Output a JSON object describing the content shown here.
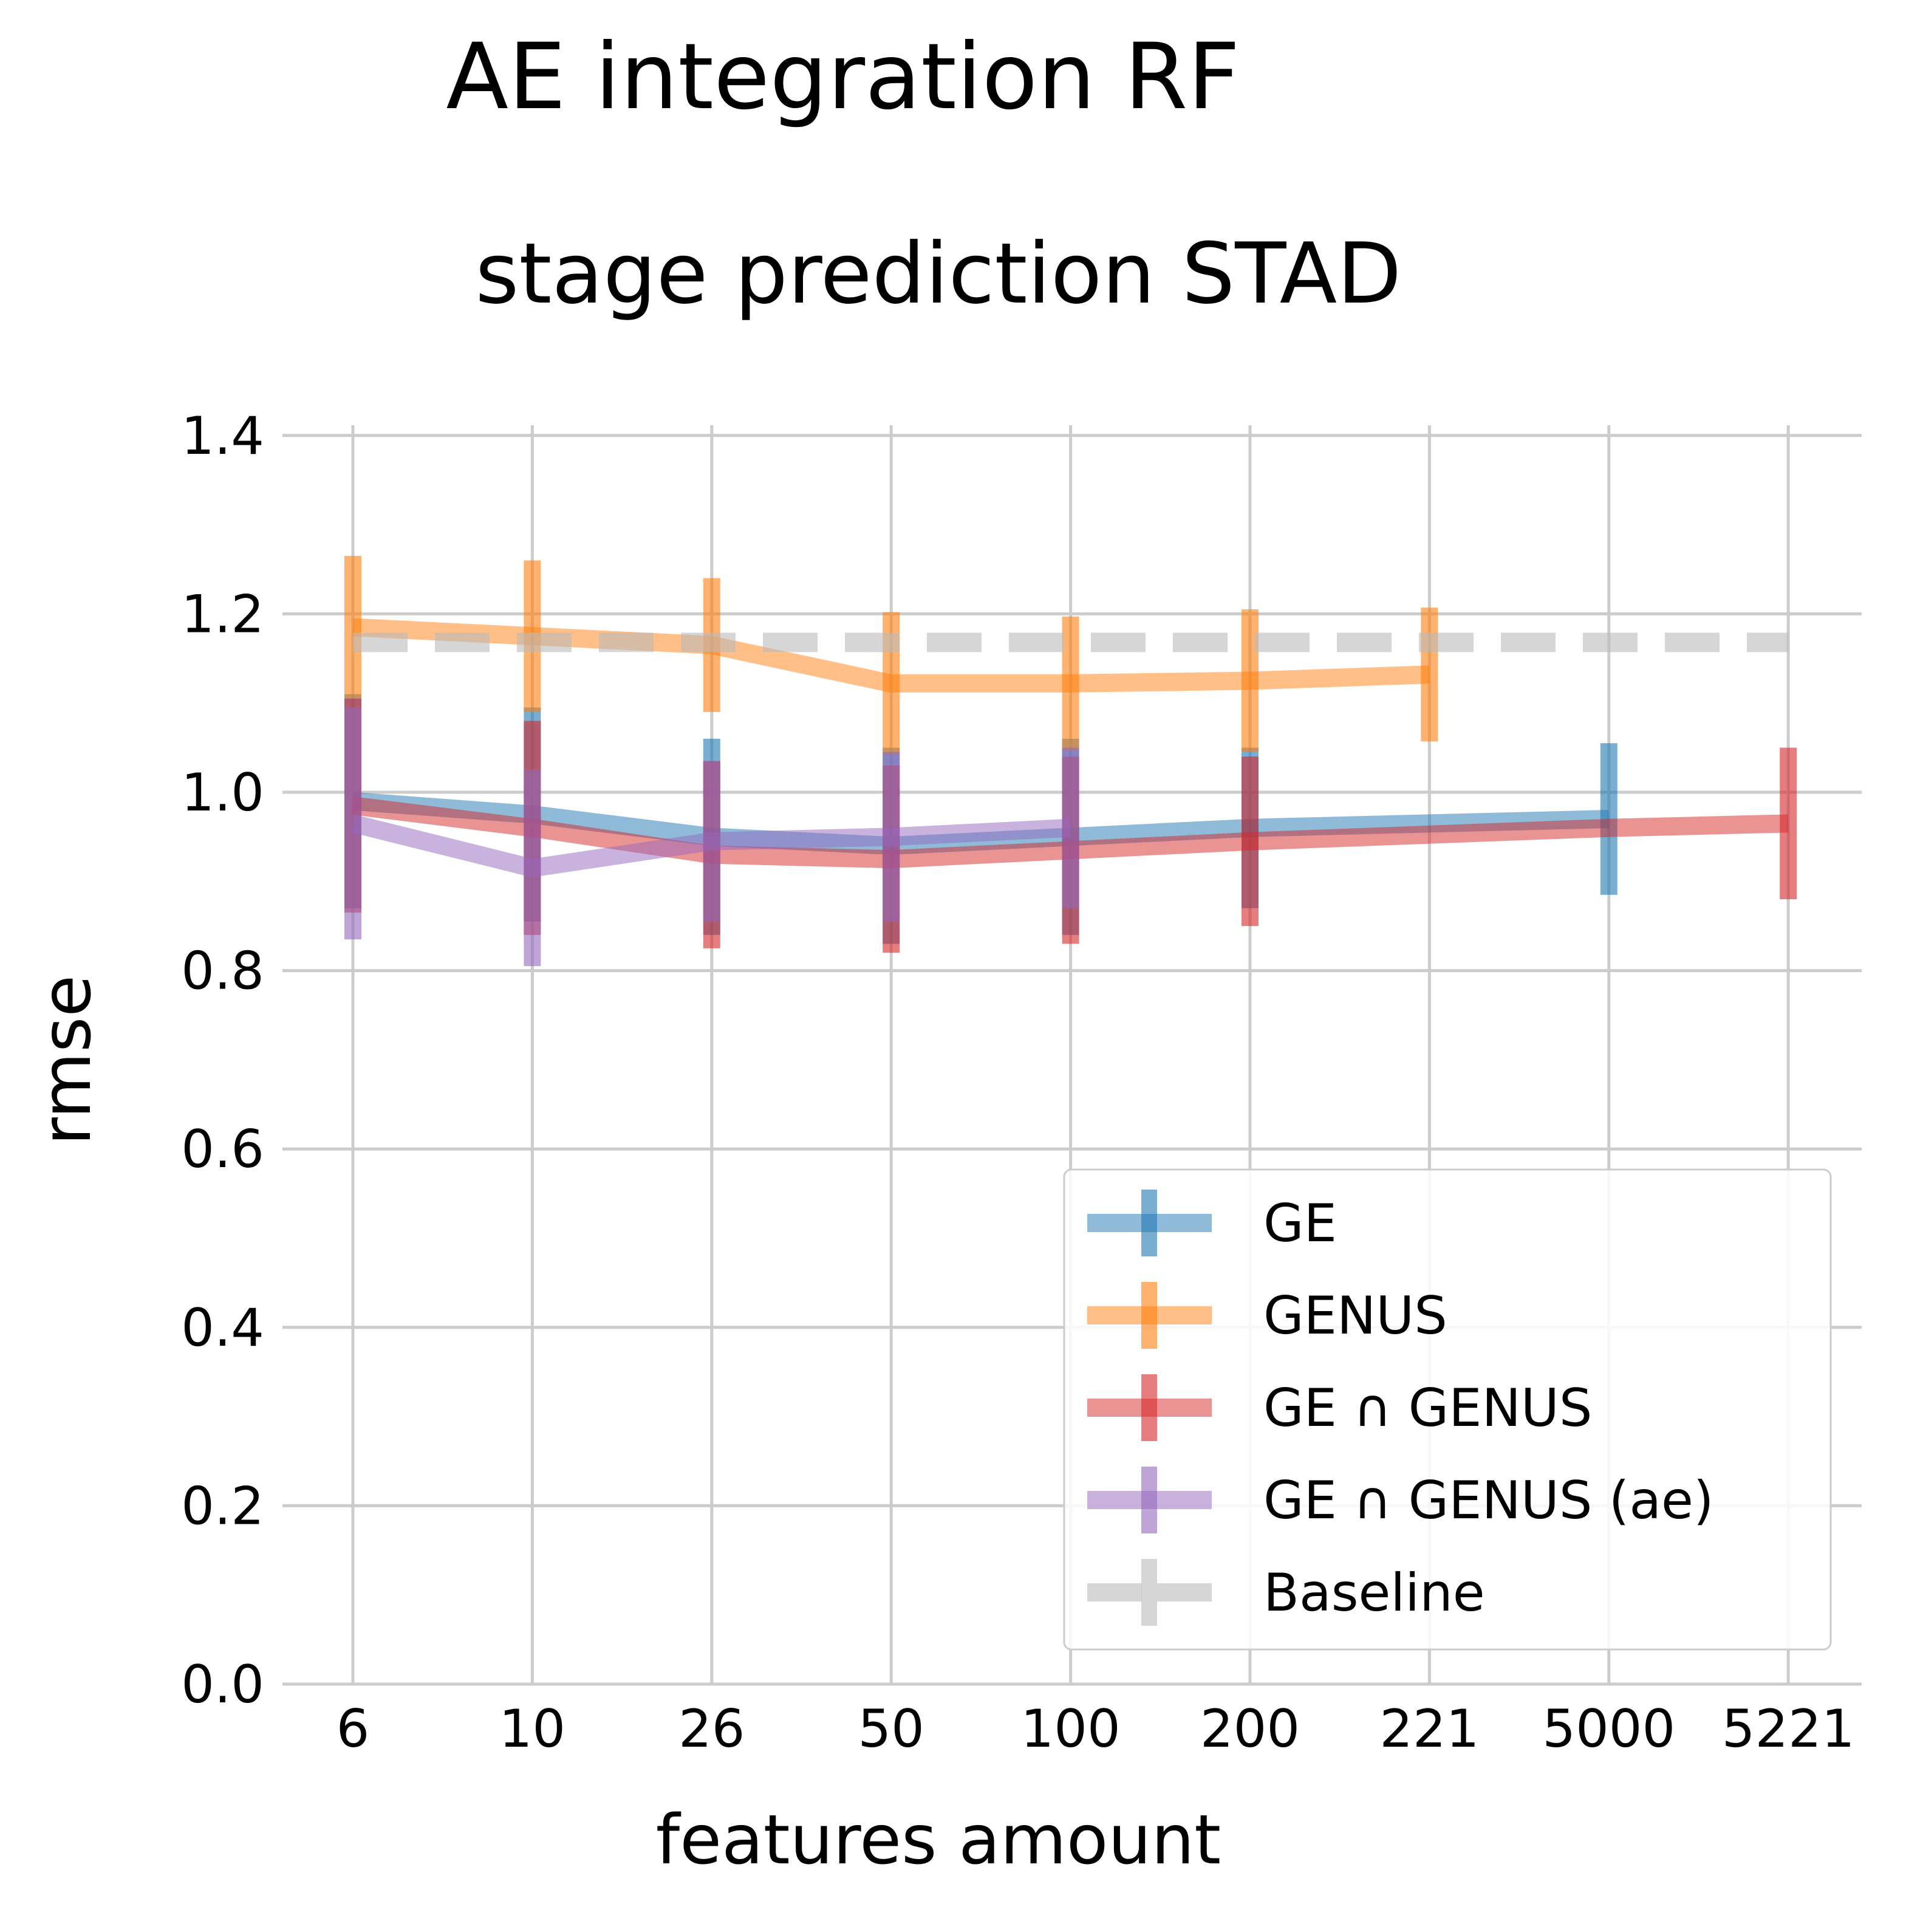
{
  "chart_data": {
    "type": "line",
    "suptitle": "AE integration RF",
    "title": "stage prediction STAD",
    "xlabel": "features amount",
    "ylabel": "rmse",
    "categories": [
      "6",
      "10",
      "26",
      "50",
      "100",
      "200",
      "221",
      "5000",
      "5221"
    ],
    "ylim": [
      0.0,
      1.5
    ],
    "yticks": [
      0.0,
      0.2,
      0.4,
      0.6,
      0.8,
      1.0,
      1.2,
      1.4
    ],
    "ytick_labels": [
      "0.0",
      "0.2",
      "0.4",
      "0.6",
      "0.8",
      "1.0",
      "1.2",
      "1.4"
    ],
    "grid": true,
    "legend_position": "lower-right",
    "series": [
      {
        "name": "GE",
        "color": "#1f77b4",
        "points": [
          {
            "x": "6",
            "y": 0.99,
            "err": 0.12
          },
          {
            "x": "10",
            "y": 0.975,
            "err": 0.12
          },
          {
            "x": "26",
            "y": 0.95,
            "err": 0.11
          },
          {
            "x": "50",
            "y": 0.94,
            "err": 0.11
          },
          {
            "x": "100",
            "y": 0.95,
            "err": 0.11
          },
          {
            "x": "200",
            "y": 0.96,
            "err": 0.09
          },
          {
            "x": "5000",
            "y": 0.97,
            "err": 0.085
          }
        ]
      },
      {
        "name": "GENUS",
        "color": "#ff7f0e",
        "points": [
          {
            "x": "6",
            "y": 1.185,
            "err": 0.08
          },
          {
            "x": "10",
            "y": 1.175,
            "err": 0.085
          },
          {
            "x": "26",
            "y": 1.165,
            "err": 0.075
          },
          {
            "x": "50",
            "y": 1.122,
            "err": 0.08
          },
          {
            "x": "100",
            "y": 1.122,
            "err": 0.075
          },
          {
            "x": "200",
            "y": 1.125,
            "err": 0.08
          },
          {
            "x": "221",
            "y": 1.132,
            "err": 0.075
          }
        ]
      },
      {
        "name": "GE ∩ GENUS",
        "color": "#d62728",
        "points": [
          {
            "x": "6",
            "y": 0.985,
            "err": 0.12
          },
          {
            "x": "10",
            "y": 0.96,
            "err": 0.12
          },
          {
            "x": "26",
            "y": 0.93,
            "err": 0.105
          },
          {
            "x": "50",
            "y": 0.925,
            "err": 0.105
          },
          {
            "x": "100",
            "y": 0.935,
            "err": 0.105
          },
          {
            "x": "200",
            "y": 0.945,
            "err": 0.095
          },
          {
            "x": "5000",
            "y": 0.96,
            "err": 0.0
          },
          {
            "x": "5221",
            "y": 0.965,
            "err": 0.085
          }
        ]
      },
      {
        "name": "GE ∩ GENUS (ae)",
        "color": "#9467bd",
        "points": [
          {
            "x": "6",
            "y": 0.965,
            "err": 0.13
          },
          {
            "x": "10",
            "y": 0.915,
            "err": 0.11
          },
          {
            "x": "26",
            "y": 0.945,
            "err": 0.09
          },
          {
            "x": "50",
            "y": 0.95,
            "err": 0.095
          },
          {
            "x": "100",
            "y": 0.96,
            "err": 0.09
          }
        ]
      },
      {
        "name": "Baseline",
        "color": "#bbbbbb",
        "style": "dashed",
        "y": 1.168
      }
    ]
  }
}
